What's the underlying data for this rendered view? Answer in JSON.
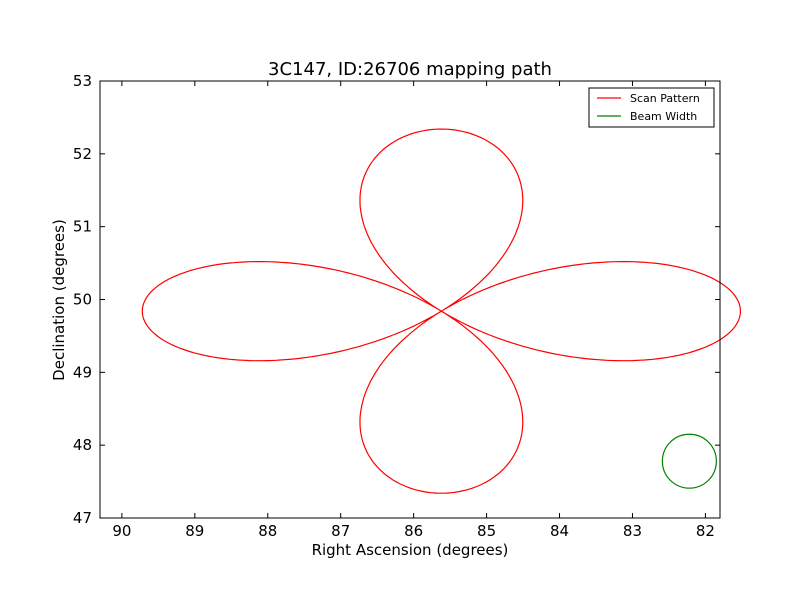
{
  "chart_data": {
    "type": "line",
    "title": "3C147, ID:26706 mapping path",
    "xlabel": "Right Ascension (degrees)",
    "ylabel": "Declination (degrees)",
    "xlim": [
      90.3,
      81.8
    ],
    "ylim": [
      47,
      53
    ],
    "x_inverted": true,
    "xticks": [
      90,
      89,
      88,
      87,
      86,
      85,
      84,
      83,
      82
    ],
    "yticks": [
      47,
      48,
      49,
      50,
      51,
      52,
      53
    ],
    "legend_position": "top-right",
    "series": [
      {
        "name": "Scan Pattern",
        "color": "#ff0000",
        "shape": "four-petal rose scan",
        "center": [
          85.62,
          49.84
        ],
        "ra_half_width": 4.1,
        "dec_half_height": 2.5
      },
      {
        "name": "Beam Width",
        "color": "#008000",
        "shape": "circle",
        "center": [
          82.22,
          47.78
        ],
        "radius_ra": 0.37,
        "radius_dec": 0.37
      }
    ]
  }
}
